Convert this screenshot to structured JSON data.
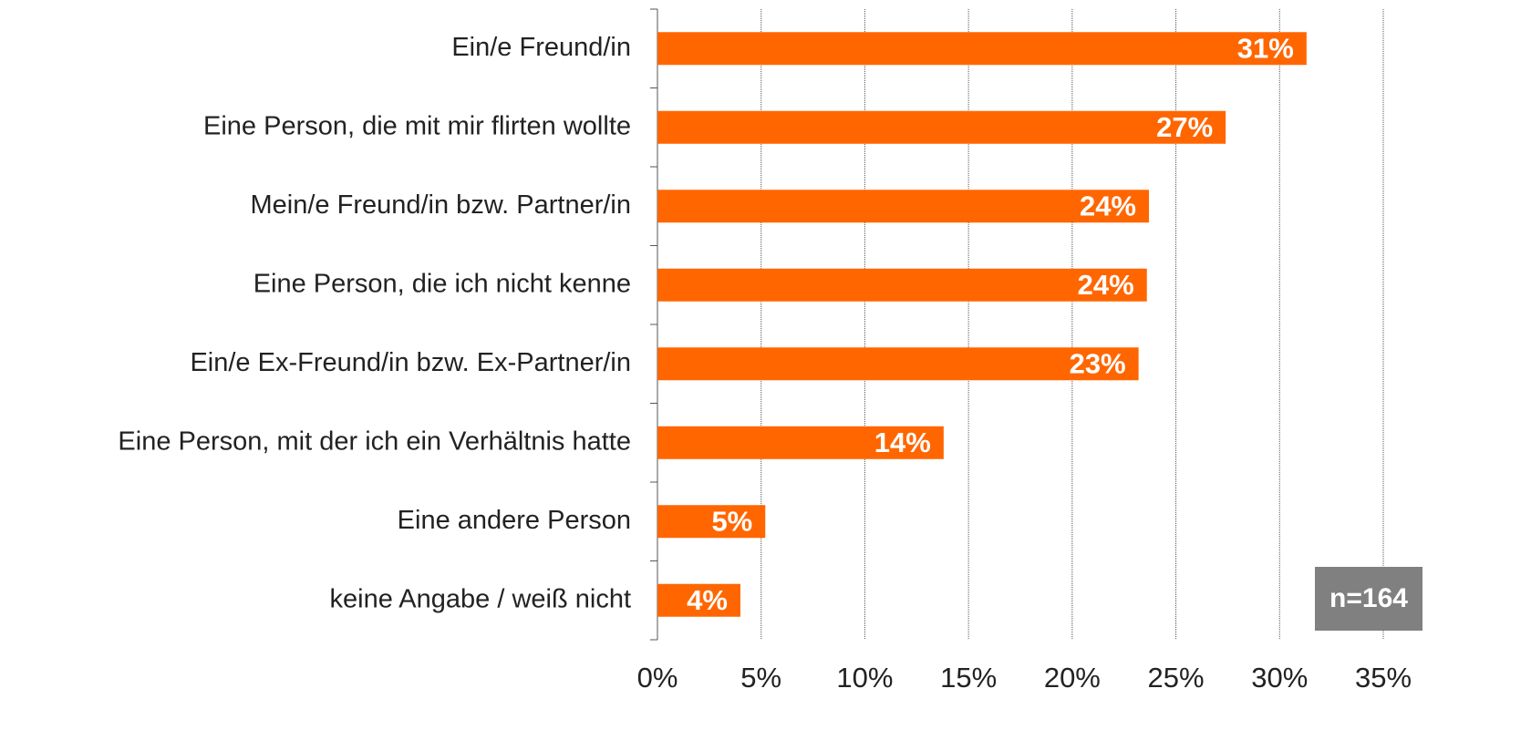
{
  "chart_data": {
    "type": "bar",
    "orientation": "horizontal",
    "categories": [
      "Ein/e Freund/in",
      "Eine Person, die mit mir flirten wollte",
      "Mein/e Freund/in bzw. Partner/in",
      "Eine Person, die ich nicht kenne",
      "Ein/e Ex-Freund/in bzw. Ex-Partner/in",
      "Eine Person, mit der ich ein Verhältnis hatte",
      "Eine andere Person",
      "keine Angabe / weiß nicht"
    ],
    "values": [
      31.3,
      27.4,
      23.7,
      23.6,
      23.2,
      13.8,
      5.2,
      4.0
    ],
    "value_labels": [
      "31%",
      "27%",
      "24%",
      "24%",
      "23%",
      "14%",
      "5%",
      "4%"
    ],
    "color": "#ff6600",
    "xlim": [
      0,
      35
    ],
    "xticks": [
      {
        "value": 0,
        "label": "0%"
      },
      {
        "value": 5,
        "label": "5%"
      },
      {
        "value": 10,
        "label": "10%"
      },
      {
        "value": 15,
        "label": "15%"
      },
      {
        "value": 20,
        "label": "20%"
      },
      {
        "value": 25,
        "label": "25%"
      },
      {
        "value": 30,
        "label": "30%"
      },
      {
        "value": 35,
        "label": "35%"
      }
    ],
    "grid": true,
    "annotation": "n=164"
  }
}
